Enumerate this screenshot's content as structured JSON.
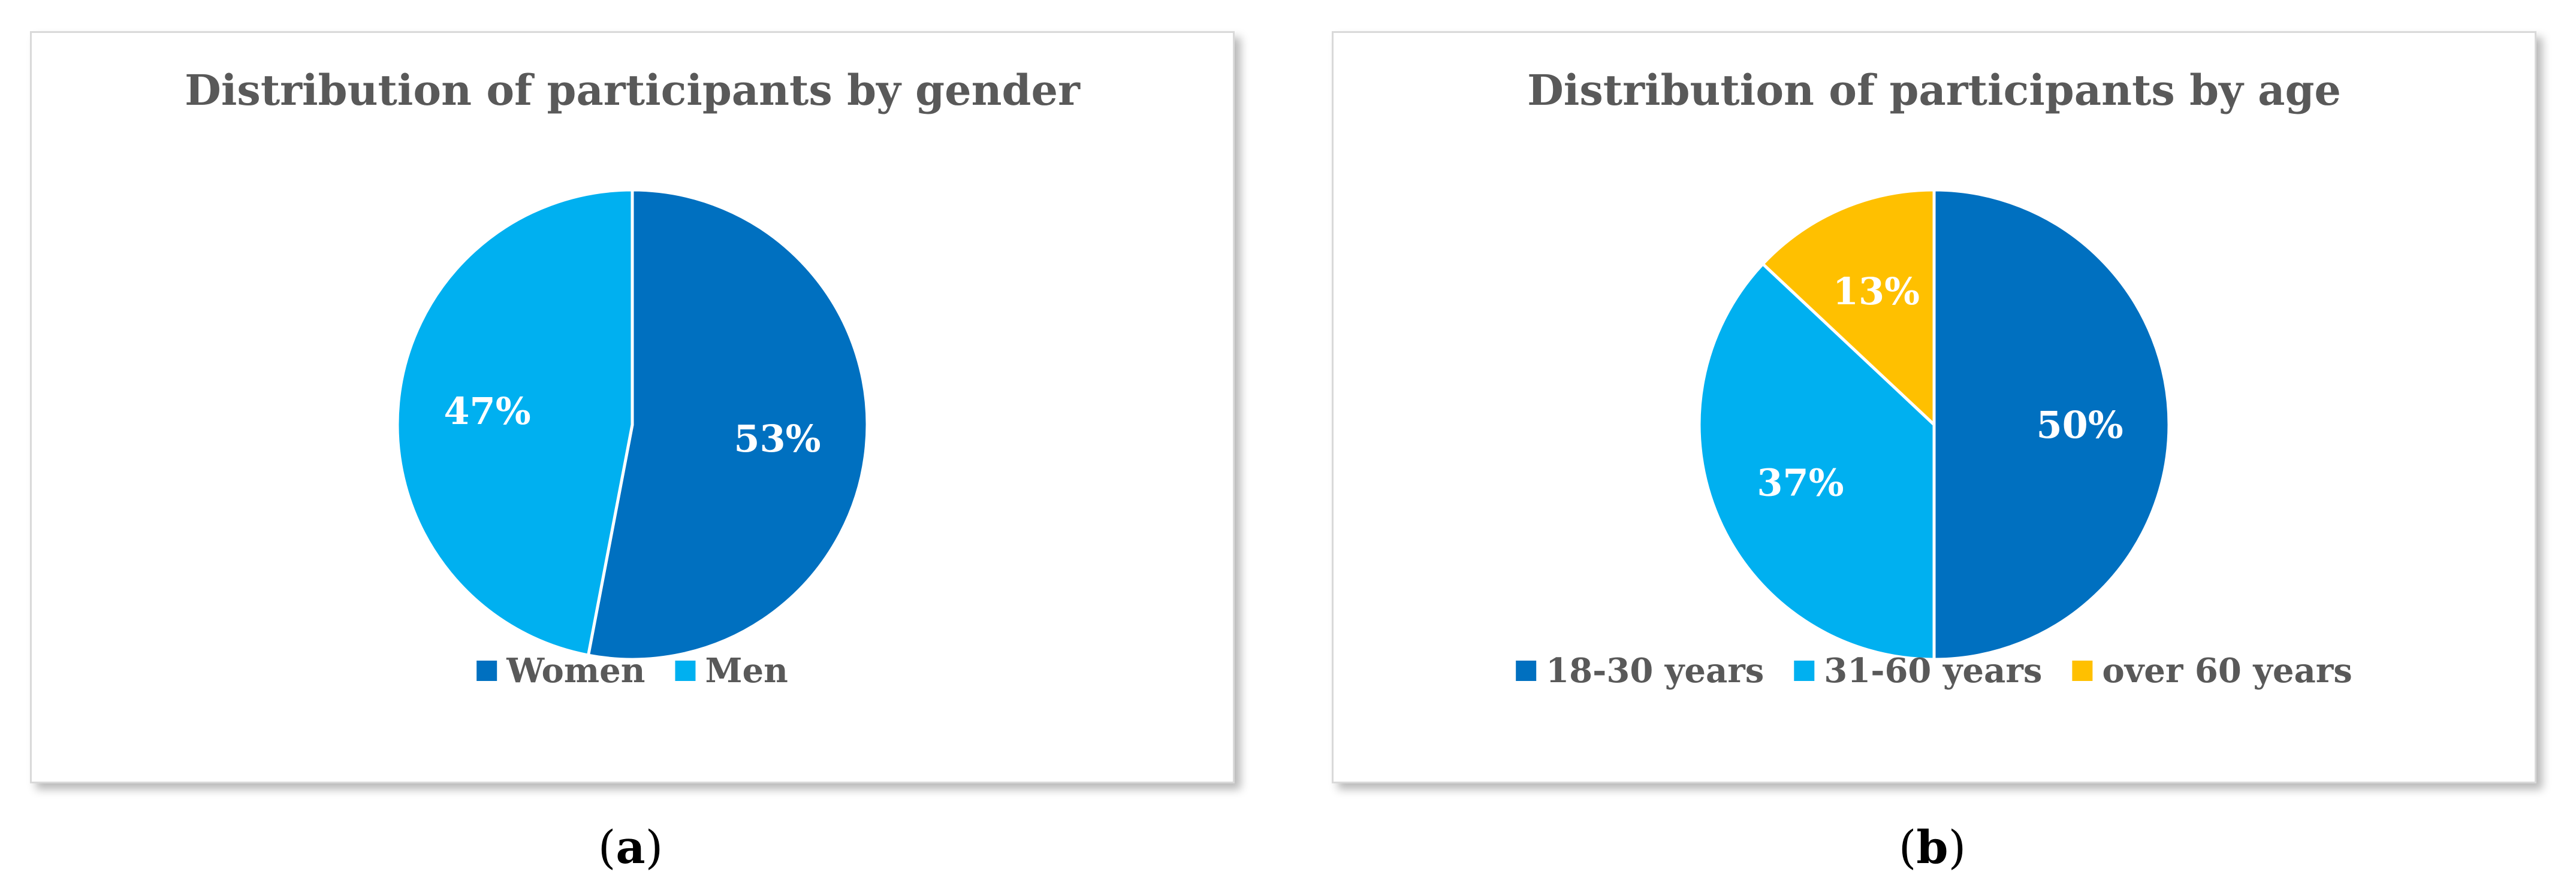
{
  "chart_data": [
    {
      "type": "pie",
      "title": "Distribution of participants by gender",
      "categories": [
        "Women",
        "Men"
      ],
      "values": [
        53,
        47
      ],
      "labels": [
        "53%",
        "47%"
      ],
      "colors": [
        "#0070C0",
        "#00B0F0"
      ],
      "legend": "bottom",
      "subfigure": {
        "open": "(",
        "letter": "a",
        "close": ")"
      }
    },
    {
      "type": "pie",
      "title": "Distribution of participants by age",
      "categories": [
        "18-30 years",
        "31-60 years",
        "over 60 years"
      ],
      "values": [
        50,
        37,
        13
      ],
      "labels": [
        "50%",
        "37%",
        "13%"
      ],
      "colors": [
        "#0070C0",
        "#00B0F0",
        "#FFC000"
      ],
      "legend": "bottom",
      "subfigure": {
        "open": "(",
        "letter": "b",
        "close": ")"
      }
    }
  ]
}
